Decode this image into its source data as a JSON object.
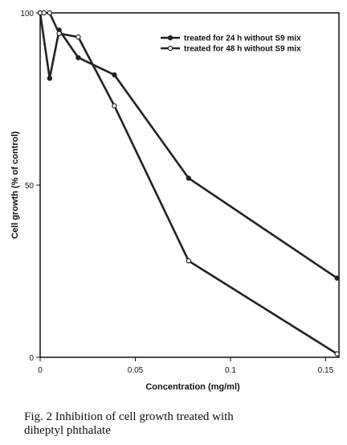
{
  "chart_data": {
    "type": "line",
    "title": "",
    "xlabel": "Concentration (mg/ml)",
    "ylabel": "Cell growth (% of control)",
    "xlim": [
      0,
      0.157
    ],
    "ylim": [
      0,
      100
    ],
    "x_ticks": [
      0,
      0.05,
      0.1,
      0.15
    ],
    "x_tick_labels": [
      "0",
      "0.05",
      "0.1",
      "0.15"
    ],
    "y_ticks": [
      0,
      50,
      100
    ],
    "y_tick_labels": [
      "0",
      "50",
      "100"
    ],
    "grid": false,
    "legend_position": "top-right",
    "series": [
      {
        "name": "treated for 24 h without S9 mix",
        "marker": "filled-circle",
        "color": "#222222",
        "x": [
          0,
          0.005,
          0.01,
          0.02,
          0.039,
          0.078,
          0.156
        ],
        "y": [
          100,
          81,
          95,
          87,
          82,
          52,
          23
        ]
      },
      {
        "name": "treated for 48 h without S9 mix",
        "marker": "open-circle",
        "color": "#222222",
        "x": [
          0,
          0.002,
          0.005,
          0.01,
          0.02,
          0.039,
          0.078,
          0.156
        ],
        "y": [
          100,
          100,
          100,
          94,
          93,
          73,
          28,
          1
        ]
      }
    ]
  },
  "caption": {
    "text": "Fig. 2  Inhibition of cell growth treated with\n            diheptyl phthalate"
  }
}
